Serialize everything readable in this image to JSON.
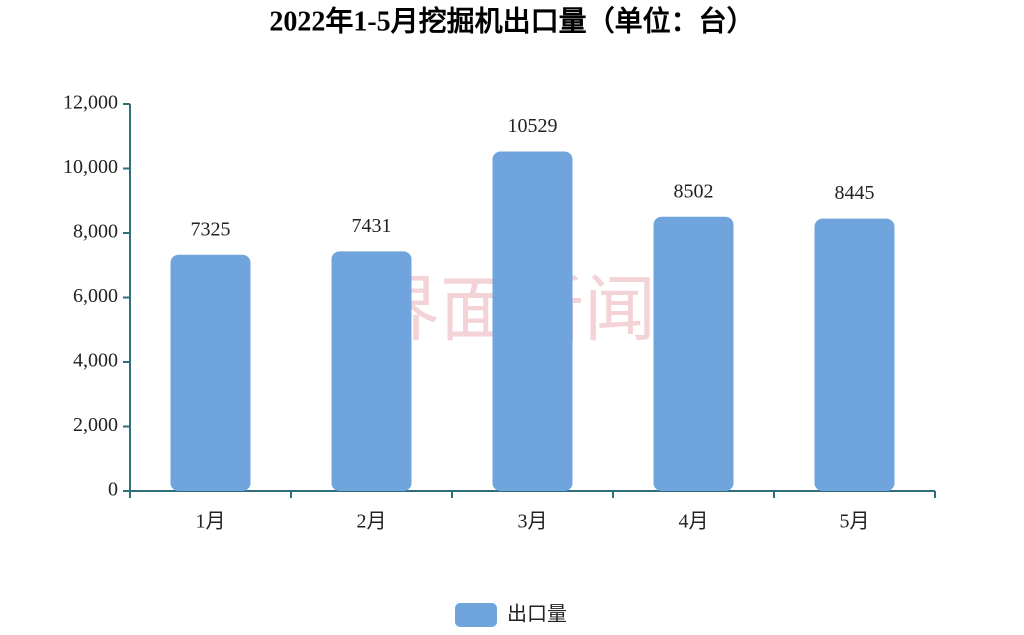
{
  "chart_data": {
    "type": "bar",
    "title": "2022年1-5月挖掘机出口量（单位：台）",
    "watermark": "界面新闻",
    "categories": [
      "1月",
      "2月",
      "3月",
      "4月",
      "5月"
    ],
    "series": [
      {
        "name": "出口量",
        "color": "#6fa5dc",
        "values": [
          7325,
          7431,
          10529,
          8502,
          8445
        ]
      }
    ],
    "ylim": [
      0,
      12000
    ],
    "yticks": [
      0,
      {
        "value": 2000,
        "label": "2,000"
      },
      {
        "value": 4000,
        "label": "4,000"
      },
      {
        "value": 6000,
        "label": "6,000"
      },
      {
        "value": 8000,
        "label": "8,000"
      },
      {
        "value": 10000,
        "label": "10,000"
      },
      {
        "value": 12000,
        "label": "12,000"
      }
    ],
    "grid": false,
    "legend": "bottom"
  }
}
